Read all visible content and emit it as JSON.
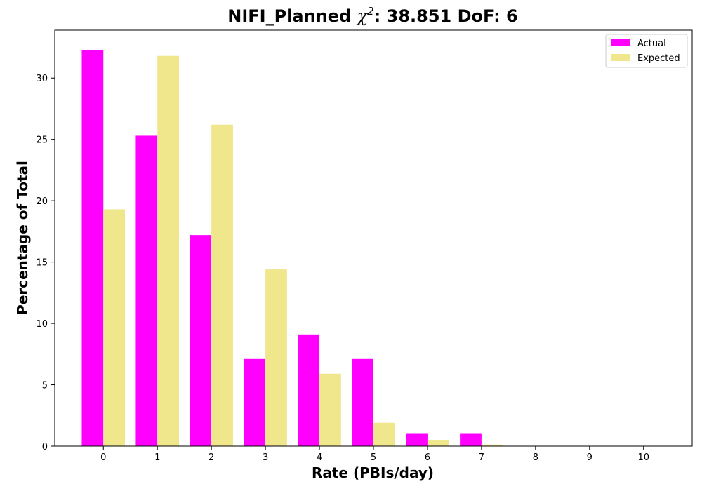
{
  "chart_data": {
    "type": "bar",
    "title_prefix": "NIFI_Planned ",
    "title_chi": "χ",
    "title_sup": "2",
    "title_suffix": ": 38.851 DoF: 6",
    "xlabel": "Rate (PBIs/day)",
    "ylabel": "Percentage of Total",
    "categories": [
      "0",
      "1",
      "2",
      "3",
      "4",
      "5",
      "6",
      "7",
      "8",
      "9",
      "10"
    ],
    "ylim": [
      0,
      33.9
    ],
    "yticks": [
      0,
      5,
      10,
      15,
      20,
      25,
      30
    ],
    "grid": false,
    "legend_position": "top-right",
    "series": [
      {
        "name": "Actual",
        "color": "#ff00ff",
        "values": [
          32.3,
          25.3,
          17.2,
          7.1,
          9.1,
          7.1,
          1.0,
          1.0,
          0,
          0,
          0
        ]
      },
      {
        "name": "Expected",
        "color": "#f0e68c",
        "values": [
          19.3,
          31.8,
          26.2,
          14.4,
          5.9,
          1.9,
          0.5,
          0.13,
          0.03,
          0.005,
          0.001
        ]
      }
    ]
  }
}
